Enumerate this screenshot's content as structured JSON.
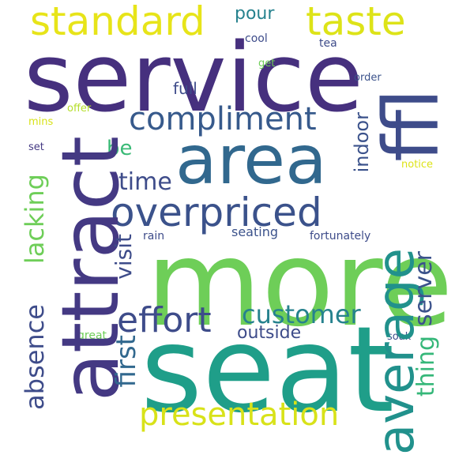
{
  "words": {
    "service": "service",
    "standard": "standard",
    "taste": "taste",
    "pour": "pour",
    "cool": "cool",
    "tea": "tea",
    "get": "get",
    "order": "order",
    "compliment": "compliment",
    "full": "full",
    "offer": "offer",
    "mins": "mins",
    "be": "be",
    "set": "set",
    "area": "area",
    "fl": "ffl",
    "indoor": "indoor",
    "notice": "notice",
    "time": "time",
    "overpriced": "overpriced",
    "attract": "attract",
    "lacking": "lacking",
    "absence": "absence",
    "visit": "visit",
    "rain": "rain",
    "seating": "seating",
    "fortunately": "fortunately",
    "more": "more",
    "average": "average",
    "effort": "effort",
    "customer": "customer",
    "server": "server",
    "outside": "outside",
    "great": "great",
    "soak": "soak",
    "thing": "thing",
    "first": "first",
    "seat": "seat",
    "presentation": "presentation"
  },
  "colors": {
    "dark_purple": "#46307e",
    "indigo": "#443983",
    "blue": "#31688e",
    "steel": "#3e4c8a",
    "teal": "#21918c",
    "sea": "#1f9e89",
    "green": "#35b779",
    "light_green": "#6ece58",
    "lime": "#9fda3a",
    "yellow_green": "#b5de2b",
    "yellow": "#dde318"
  }
}
